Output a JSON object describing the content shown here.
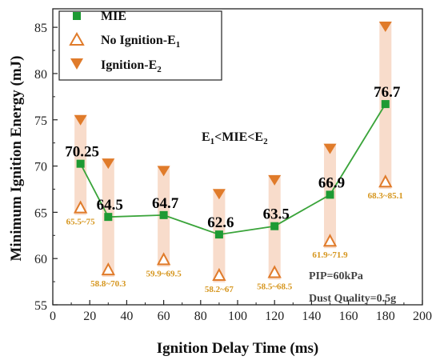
{
  "chart_data": {
    "type": "line",
    "xlabel": "Ignition Delay Time (ms)",
    "ylabel": "Minimum Ignition Energy (mJ)",
    "xlim": [
      0,
      200
    ],
    "ylim": [
      55,
      87
    ],
    "x_ticks": [
      0,
      20,
      40,
      60,
      80,
      100,
      120,
      140,
      160,
      180,
      200
    ],
    "y_ticks": [
      55,
      60,
      65,
      70,
      75,
      80,
      85
    ],
    "grid": false,
    "legend_position": "top-left",
    "colors": {
      "mie": "#1d9a33",
      "mie_line": "#3aa43a",
      "e_marker": "#e07b2a",
      "band": "#f8dccb",
      "range_text": "#d6961e"
    },
    "series": [
      {
        "name": "MIE",
        "marker": "square",
        "x": [
          15,
          30,
          60,
          90,
          120,
          150,
          180
        ],
        "y": [
          70.25,
          64.5,
          64.7,
          62.6,
          63.5,
          66.9,
          76.7
        ],
        "labels": [
          "70.25",
          "64.5",
          "64.7",
          "62.6",
          "63.5",
          "66.9",
          "76.7"
        ]
      },
      {
        "name": "No Ignition-E",
        "name_subscript": "1",
        "marker": "open-triangle-up",
        "x": [
          15,
          30,
          60,
          90,
          120,
          150,
          180
        ],
        "y": [
          65.5,
          58.8,
          59.9,
          58.2,
          58.5,
          61.9,
          68.3
        ]
      },
      {
        "name": "Ignition-E",
        "name_subscript": "2",
        "marker": "filled-triangle-down",
        "x": [
          15,
          30,
          60,
          90,
          120,
          150,
          180
        ],
        "y": [
          75,
          70.3,
          69.5,
          67,
          68.5,
          71.9,
          85.1
        ]
      }
    ],
    "range_labels": [
      "65.5~75",
      "58.8~70.3",
      "59.9~69.5",
      "58.2~67",
      "58.5~68.5",
      "61.9~71.9",
      "68.3~85.1"
    ],
    "annotations": {
      "relation": {
        "a": "E",
        "a_sub": "1",
        "b": "<MIE<E",
        "b_sub": "2"
      },
      "pip": "PIP=60kPa",
      "dust": "Dust Quality=0.5g"
    }
  }
}
